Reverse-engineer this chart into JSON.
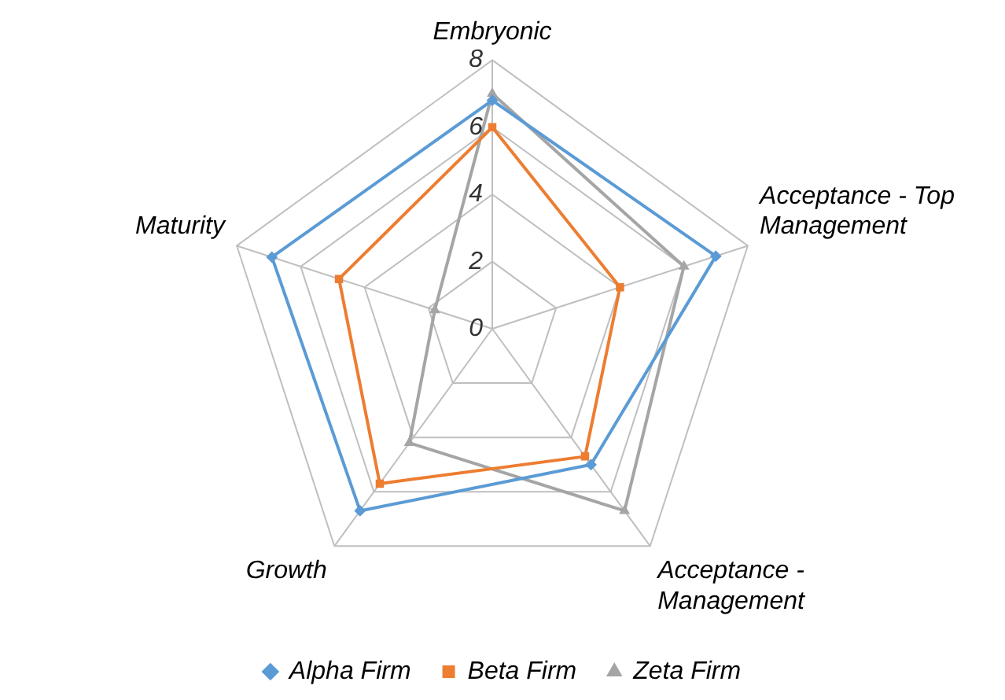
{
  "chart_data": {
    "type": "radar",
    "categories": [
      "Embryonic",
      "Acceptance - Top Management",
      "Acceptance - Management",
      "Growth",
      "Maturity"
    ],
    "series": [
      {
        "name": "Alpha Firm",
        "color": "#5b9bd5",
        "marker": "diamond",
        "values": [
          6.8,
          7,
          5,
          6.7,
          6.9
        ]
      },
      {
        "name": "Beta Firm",
        "color": "#ed7d31",
        "marker": "square",
        "values": [
          6,
          4,
          4.7,
          5.7,
          4.8
        ]
      },
      {
        "name": "Zeta Firm",
        "color": "#a5a5a5",
        "marker": "triangle",
        "values": [
          7,
          6,
          6.7,
          4.2,
          1.8
        ]
      }
    ],
    "ylim": [
      0,
      8
    ],
    "yticks": [
      0,
      2,
      4,
      6,
      8
    ],
    "grid": true,
    "legend": "bottom"
  }
}
